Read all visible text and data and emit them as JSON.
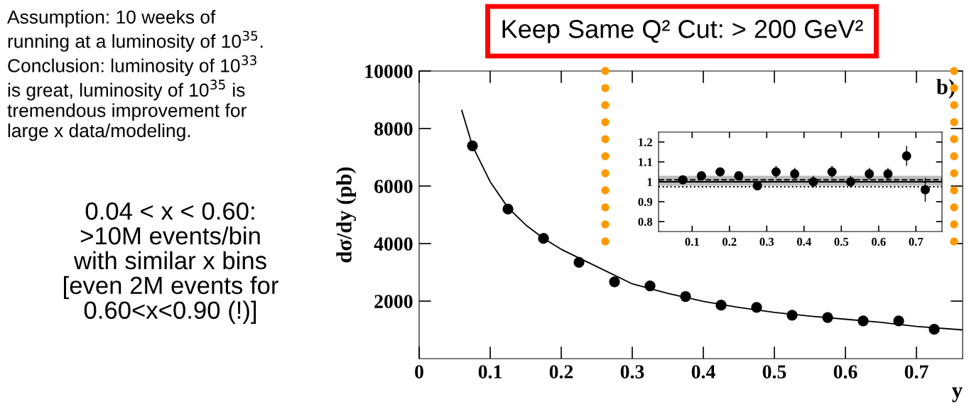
{
  "chart_data": [
    {
      "type": "scatter",
      "title": "Keep Same Q² Cut: > 200 GeV²",
      "xlabel": "y",
      "ylabel": "dσ/dy (pb)",
      "xlim": [
        0,
        0.765
      ],
      "ylim": [
        0,
        10000
      ],
      "xticks": [
        0,
        0.1,
        0.2,
        0.3,
        0.4,
        0.5,
        0.6,
        0.7
      ],
      "yticks": [
        2000,
        4000,
        6000,
        8000,
        10000
      ],
      "grid": false,
      "marker": "circle",
      "series": [
        {
          "color": "#000000",
          "x": [
            0.075,
            0.125,
            0.175,
            0.225,
            0.275,
            0.325,
            0.375,
            0.425,
            0.475,
            0.525,
            0.575,
            0.625,
            0.675,
            0.725
          ],
          "values": [
            7400,
            5200,
            4180,
            3350,
            2670,
            2530,
            2160,
            1860,
            1780,
            1510,
            1430,
            1310,
            1310,
            1020
          ]
        },
        {
          "type": "line",
          "color": "#000000",
          "marker": "none",
          "x": [
            0.06,
            0.075,
            0.1,
            0.125,
            0.15,
            0.175,
            0.2,
            0.25,
            0.3,
            0.35,
            0.4,
            0.45,
            0.5,
            0.55,
            0.6,
            0.65,
            0.7,
            0.765
          ],
          "values": [
            8630,
            7400,
            6150,
            5250,
            4650,
            4180,
            3800,
            3200,
            2600,
            2270,
            1990,
            1780,
            1610,
            1480,
            1370,
            1260,
            1120,
            1000
          ]
        }
      ],
      "annotations": [
        "b)",
        "Assumption: 10 weeks of\nrunning at a luminosity of 10$^{35}$.\nConclusion: luminosity of 10$^{33}$\nis great, luminosity of 10$^{35}$ is\ntremendous improvement for\nlarge x data/modeling.",
        "0.04 < x < 0.60:\n>10M events/bin\nwith similar x bins\n[even 2M events for\n0.60<x<0.90 (!)]"
      ]
    },
    {
      "type": "scatter",
      "xlim": [
        0.01,
        0.77
      ],
      "ylim": [
        0.75,
        1.25
      ],
      "xticks": [
        0.1,
        0.2,
        0.3,
        0.4,
        0.5,
        0.6,
        0.7
      ],
      "yticks": [
        0.8,
        0.9,
        1,
        1.1,
        1.2
      ],
      "grid": false,
      "marker": "circle",
      "series": [
        {
          "color": "#000000",
          "x": [
            0.075,
            0.125,
            0.175,
            0.225,
            0.275,
            0.325,
            0.375,
            0.425,
            0.475,
            0.525,
            0.575,
            0.625,
            0.675,
            0.725
          ],
          "values": [
            1.01,
            1.03,
            1.05,
            1.03,
            0.98,
            1.05,
            1.04,
            1.0,
            1.05,
            1.0,
            1.04,
            1.04,
            1.13,
            0.96
          ],
          "errors": [
            0.01,
            0.02,
            0.02,
            0.02,
            0.02,
            0.03,
            0.03,
            0.03,
            0.03,
            0.03,
            0.03,
            0.03,
            0.05,
            0.06
          ]
        }
      ],
      "bands": [
        {
          "axis": "y",
          "from": 0.98,
          "to": 1.03,
          "color": "#bbbbbb"
        }
      ],
      "ref_lines": [
        {
          "axis": "y",
          "value": 1.0,
          "color": "#000000",
          "line_style": "solid"
        },
        {
          "axis": "y",
          "value": 1.01,
          "color": "#000000",
          "line_style": "dashed"
        },
        {
          "axis": "y",
          "value": 0.975,
          "color": "#000000",
          "line_style": "dotted"
        }
      ]
    }
  ]
}
